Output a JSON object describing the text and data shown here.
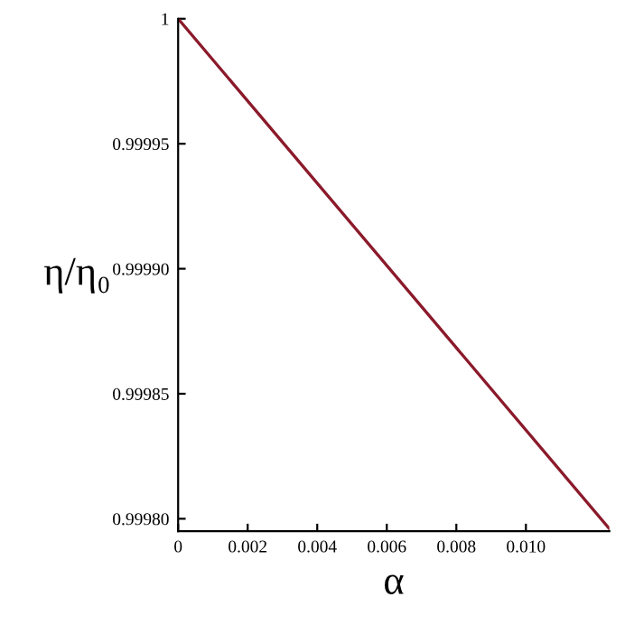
{
  "chart_data": {
    "type": "line",
    "xlabel": "α",
    "ylabel": "η/η₀",
    "series": [
      {
        "color": "#8b1a2b",
        "x": [
          0,
          0.0124
        ],
        "values": [
          1,
          0.999796
        ]
      }
    ],
    "xlim": [
      0,
      0.0124
    ],
    "ylim": [
      0.999795,
      1
    ],
    "xticks": [
      0,
      {
        "value": 0.002,
        "label": "0.002"
      },
      {
        "value": 0.004,
        "label": "0.004"
      },
      {
        "value": 0.006,
        "label": "0.006"
      },
      {
        "value": 0.008,
        "label": "0.008"
      },
      {
        "value": 0.01,
        "label": "0.010"
      }
    ],
    "yticks": [
      {
        "value": 0.9998,
        "label": "0.99980"
      },
      {
        "value": 0.99985,
        "label": "0.99985"
      },
      {
        "value": 0.9999,
        "label": "0.99990"
      },
      {
        "value": 0.99995,
        "label": "0.99995"
      },
      1
    ],
    "grid": false,
    "legend": false
  }
}
